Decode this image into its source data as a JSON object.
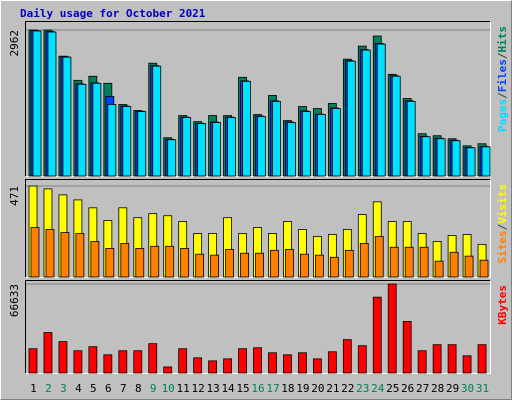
{
  "chart_data": [
    {
      "type": "bar",
      "title": "Daily usage for October 2021",
      "title_color": "#0000c0",
      "ylim": [
        0,
        2962
      ],
      "yticks": [
        2962
      ],
      "legend_separator": "/",
      "series": [
        {
          "name": "Hits",
          "color": "#00805c",
          "values": [
            2962,
            2962,
            2431,
            1941,
            2023,
            1880,
            1451,
            1328,
            2288,
            776,
            1226,
            1103,
            1226,
            1226,
            2002,
            1246,
            1634,
            1124,
            1410,
            1369,
            1471,
            2370,
            2635,
            2840,
            2063,
            1573,
            858,
            817,
            756,
            613,
            654
          ]
        },
        {
          "name": "Files",
          "color": "#0040ff",
          "values": [
            2950,
            2930,
            2420,
            1870,
            1890,
            1614,
            1420,
            1315,
            2240,
            745,
            1195,
            1070,
            1095,
            1195,
            1930,
            1215,
            1525,
            1095,
            1320,
            1255,
            1380,
            2340,
            2565,
            2690,
            2035,
            1525,
            805,
            765,
            725,
            580,
            600
          ]
        },
        {
          "name": "Pages",
          "color": "#00e0ff",
          "values": [
            2942,
            2921,
            2411,
            1859,
            1880,
            1451,
            1410,
            1307,
            2227,
            735,
            1185,
            1062,
            1083,
            1185,
            1920,
            1205,
            1512,
            1083,
            1307,
            1246,
            1369,
            2329,
            2554,
            2676,
            2023,
            1512,
            797,
            756,
            715,
            572,
            592
          ]
        }
      ]
    },
    {
      "type": "bar",
      "ylim": [
        0,
        471
      ],
      "yticks": [
        471
      ],
      "legend_separator": "/",
      "series": [
        {
          "name": "Visits",
          "color": "#ffff00",
          "values": [
            471,
            456,
            425,
            399,
            358,
            292,
            358,
            307,
            328,
            317,
            287,
            225,
            225,
            307,
            225,
            256,
            225,
            287,
            246,
            210,
            220,
            246,
            323,
            389,
            287,
            287,
            225,
            184,
            215,
            220,
            169
          ]
        },
        {
          "name": "Sites",
          "color": "#ff8000",
          "values": [
            256,
            246,
            230,
            225,
            184,
            148,
            174,
            148,
            159,
            159,
            148,
            118,
            113,
            143,
            123,
            123,
            138,
            143,
            118,
            113,
            102,
            138,
            174,
            210,
            154,
            154,
            154,
            82,
            128,
            108,
            87
          ]
        }
      ]
    },
    {
      "type": "bar",
      "ylim": [
        0,
        66633
      ],
      "yticks": [
        66633
      ],
      "categories": [
        "1",
        "2",
        "3",
        "4",
        "5",
        "6",
        "7",
        "8",
        "9",
        "10",
        "11",
        "12",
        "13",
        "14",
        "15",
        "16",
        "17",
        "18",
        "19",
        "20",
        "21",
        "22",
        "23",
        "24",
        "25",
        "26",
        "27",
        "28",
        "29",
        "30",
        "31"
      ],
      "category_colors": [
        "#000000",
        "#00805c",
        "#00805c",
        "#000000",
        "#000000",
        "#000000",
        "#000000",
        "#000000",
        "#00805c",
        "#00805c",
        "#000000",
        "#000000",
        "#000000",
        "#000000",
        "#000000",
        "#00805c",
        "#00805c",
        "#000000",
        "#000000",
        "#000000",
        "#000000",
        "#000000",
        "#00805c",
        "#00805c",
        "#000000",
        "#000000",
        "#000000",
        "#000000",
        "#000000",
        "#00805c",
        "#00805c"
      ],
      "series": [
        {
          "name": "KBytes",
          "color": "#ff0000",
          "values": [
            18168,
            30280,
            23467,
            16654,
            19682,
            13626,
            16654,
            16654,
            21953,
            4542,
            18168,
            11355,
            9084,
            10598,
            18168,
            18925,
            15140,
            13626,
            15140,
            10598,
            15897,
            24981,
            20439,
            56775,
            66633,
            38607,
            16654,
            21196,
            21196,
            12869,
            21196
          ]
        }
      ]
    }
  ]
}
